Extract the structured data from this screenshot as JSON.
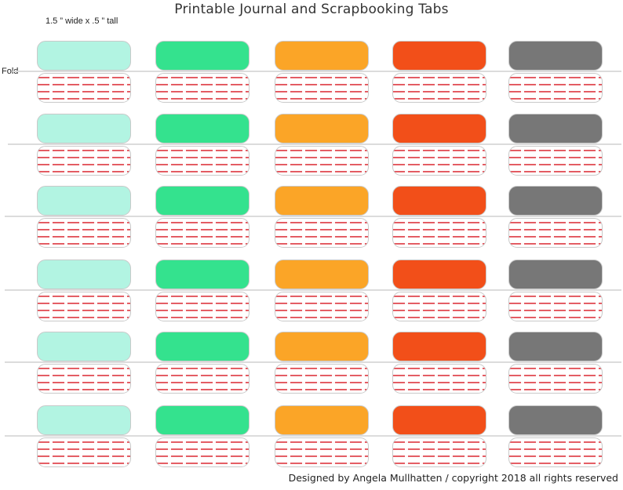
{
  "header": {
    "title": "Printable Journal and Scrapbooking Tabs",
    "size_note": "1.5 ” wide x .5 ” tall",
    "fold_label": "Fold"
  },
  "footer": {
    "credit": "Designed by Angela Mullhatten / copyright 2018 all rights reserved"
  },
  "palette": {
    "columns": [
      "#b2f4e2",
      "#34e28e",
      "#fba527",
      "#f24f19",
      "#777777"
    ],
    "stripe": "#e0505a",
    "border": "#c9c9c9"
  },
  "grid": {
    "rows": 6,
    "columns": 5
  }
}
